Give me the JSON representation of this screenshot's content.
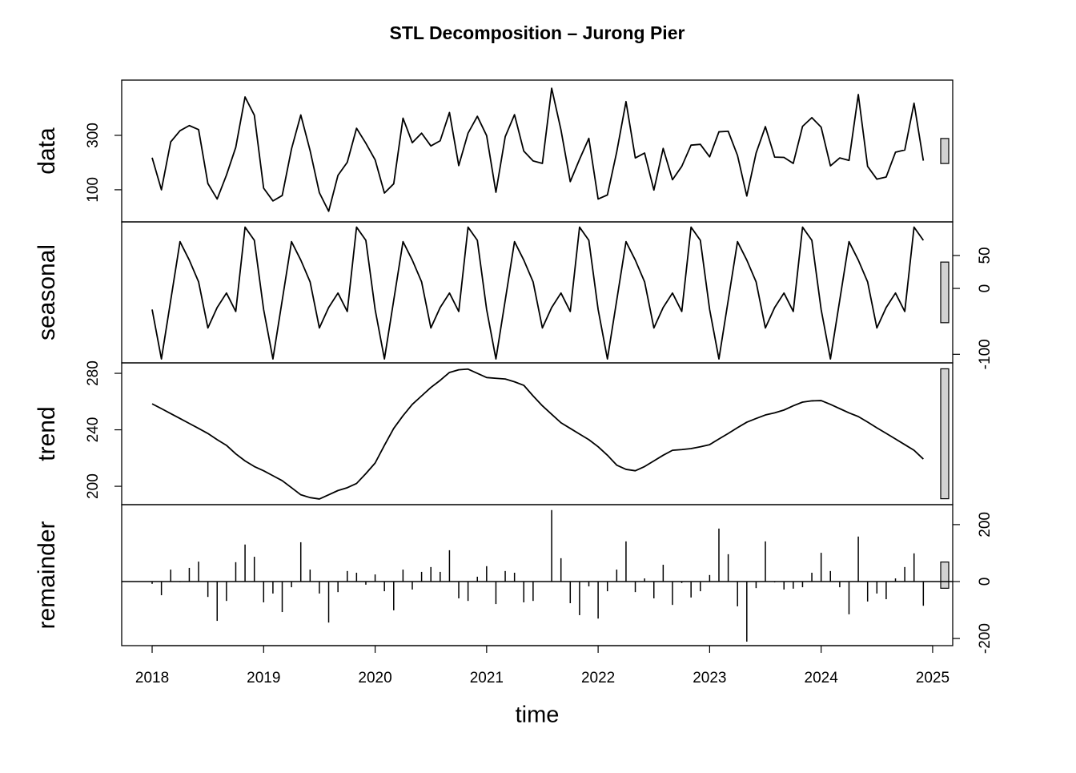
{
  "chart_data": {
    "type": "stl",
    "title": "STL Decomposition – Jurong Pier",
    "xlabel": "time",
    "xlim": [
      2017.727,
      2025.18
    ],
    "xticks": [
      2018,
      2019,
      2020,
      2021,
      2022,
      2023,
      2024,
      2025
    ],
    "x": [
      2018,
      2018.0833,
      2018.1667,
      2018.25,
      2018.3333,
      2018.4167,
      2018.5,
      2018.5833,
      2018.6667,
      2018.75,
      2018.8333,
      2018.9167,
      2019,
      2019.0833,
      2019.1667,
      2019.25,
      2019.3333,
      2019.4167,
      2019.5,
      2019.5833,
      2019.6667,
      2019.75,
      2019.8333,
      2019.9167,
      2020,
      2020.0833,
      2020.1667,
      2020.25,
      2020.3333,
      2020.4167,
      2020.5,
      2020.5833,
      2020.6667,
      2020.75,
      2020.8333,
      2020.9167,
      2021,
      2021.0833,
      2021.1667,
      2021.25,
      2021.3333,
      2021.4167,
      2021.5,
      2021.5833,
      2021.6667,
      2021.75,
      2021.8333,
      2021.9167,
      2022,
      2022.0833,
      2022.1667,
      2022.25,
      2022.3333,
      2022.4167,
      2022.5,
      2022.5833,
      2022.6667,
      2022.75,
      2022.8333,
      2022.9167,
      2023,
      2023.0833,
      2023.1667,
      2023.25,
      2023.3333,
      2023.4167,
      2023.5,
      2023.5833,
      2023.6667,
      2023.75,
      2023.8333,
      2023.9167,
      2024,
      2024.0833,
      2024.1667,
      2024.25,
      2024.3333,
      2024.4167,
      2024.5,
      2024.5833,
      2024.6667,
      2024.75,
      2024.8333,
      2024.9167
    ],
    "color": "#000000",
    "range_bar_color": "#d3d3d3",
    "panels": [
      {
        "type": "line",
        "name": "data",
        "axis_side": "left",
        "ylim": [
          -18,
          503
        ],
        "yticks": [
          100,
          300
        ],
        "values": [
          218,
          100,
          276,
          317,
          336,
          321,
          123,
          66,
          154,
          256,
          441,
          374,
          106,
          59,
          79,
          250,
          375,
          244,
          89,
          21,
          153,
          201,
          326,
          271,
          210,
          88,
          122,
          363,
          273,
          308,
          261,
          280,
          384,
          189,
          308,
          370,
          299,
          91,
          295,
          376,
          242,
          206,
          197,
          473,
          320,
          130,
          212,
          289,
          66,
          81,
          239,
          424,
          217,
          235,
          99,
          252,
          137,
          186,
          264,
          267,
          221,
          313,
          315,
          226,
          77,
          235,
          332,
          220,
          219,
          197,
          333,
          365,
          330,
          188,
          217,
          208,
          450,
          186,
          139,
          147,
          238,
          246,
          418,
          207
        ]
      },
      {
        "type": "line",
        "name": "seasonal",
        "axis_side": "right",
        "ylim": [
          -113,
          101
        ],
        "yticks": [
          -100,
          0,
          50
        ],
        "values": [
          -32,
          -107,
          -18,
          71,
          43,
          10,
          -60,
          -29,
          -7,
          -35,
          93,
          73,
          -32,
          -107,
          -18,
          71,
          43,
          10,
          -60,
          -29,
          -7,
          -35,
          93,
          73,
          -32,
          -107,
          -18,
          71,
          43,
          10,
          -60,
          -29,
          -7,
          -35,
          93,
          73,
          -32,
          -107,
          -18,
          71,
          43,
          10,
          -60,
          -29,
          -7,
          -35,
          93,
          73,
          -32,
          -107,
          -18,
          71,
          43,
          10,
          -60,
          -29,
          -7,
          -35,
          93,
          73,
          -32,
          -107,
          -18,
          71,
          43,
          10,
          -60,
          -29,
          -7,
          -35,
          93,
          73,
          -32,
          -107,
          -18,
          71,
          43,
          10,
          -60,
          -29,
          -7,
          -35,
          93,
          73
        ]
      },
      {
        "type": "line",
        "name": "trend",
        "axis_side": "left",
        "ylim": [
          187,
          287.4
        ],
        "yticks": [
          200,
          240,
          280
        ],
        "values": [
          258.4,
          255,
          251.5,
          248,
          244.5,
          241,
          237.4,
          233,
          229,
          223,
          218,
          214,
          211,
          207.5,
          204,
          199,
          194,
          192,
          191,
          194,
          197,
          199,
          202,
          209,
          216.5,
          229,
          241,
          250,
          258,
          264,
          270,
          275,
          280.6,
          282.5,
          283,
          280,
          277,
          276.5,
          276,
          274,
          271.5,
          264,
          257,
          251,
          245,
          241,
          237,
          233,
          228,
          222,
          215,
          212,
          211,
          214,
          218,
          222,
          225.5,
          226,
          226.7,
          228,
          229.5,
          233.5,
          237.4,
          241.5,
          245.4,
          248,
          250.5,
          252,
          254,
          257,
          259.6,
          260.5,
          260.7,
          258,
          255,
          252,
          249.4,
          245.5,
          241.4,
          237.5,
          233.5,
          229.5,
          225.5,
          219.3
        ]
      },
      {
        "type": "spike",
        "name": "remainder",
        "axis_side": "right",
        "ylim": [
          -225,
          270
        ],
        "yticks": [
          -200,
          0,
          200
        ],
        "values": [
          -8,
          -48,
          42,
          -2,
          48,
          70,
          -54,
          -138,
          -68,
          68,
          130,
          87,
          -73,
          -42,
          -107,
          -20,
          138,
          42,
          -42,
          -144,
          -37,
          37,
          31,
          -11,
          25,
          -34,
          -101,
          42,
          -28,
          34,
          51,
          34,
          110,
          -59,
          -68,
          17,
          54,
          -79,
          37,
          31,
          -73,
          -68,
          0,
          251,
          82,
          -76,
          -118,
          -17,
          -130,
          -34,
          42,
          141,
          -37,
          11,
          -59,
          59,
          -82,
          -5,
          -56,
          -34,
          23,
          186,
          96,
          -87,
          -211,
          -23,
          141,
          -3,
          -28,
          -25,
          -20,
          31,
          101,
          37,
          -20,
          -115,
          158,
          -70,
          -42,
          -62,
          11,
          51,
          99,
          -85
        ]
      }
    ]
  }
}
